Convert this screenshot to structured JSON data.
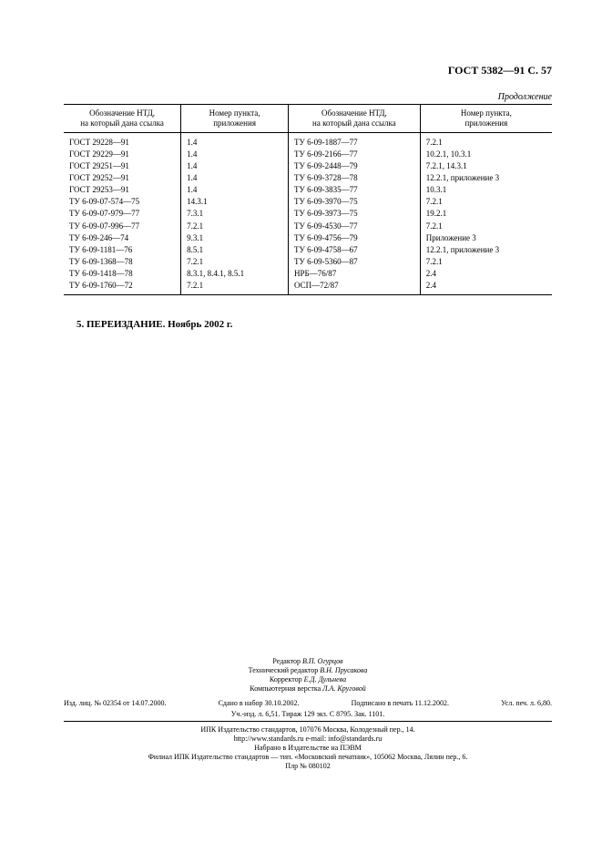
{
  "header": "ГОСТ 5382—91 С. 57",
  "continuation": "Продолжение",
  "table": {
    "col_widths_pct": [
      24,
      22,
      27,
      27
    ],
    "headers": [
      "Обозначение НТД,\nна который дана ссылка",
      "Номер пункта,\nприложения",
      "Обозначение НТД,\nна который дана ссылка",
      "Номер пункта,\nприложения"
    ],
    "rows": [
      [
        "ГОСТ 29228—91",
        "1.4",
        "ТУ 6-09-1887—77",
        "7.2.1"
      ],
      [
        "ГОСТ 29229—91",
        "1.4",
        "ТУ 6-09-2166—77",
        "10.2.1, 10.3.1"
      ],
      [
        "ГОСТ 29251—91",
        "1.4",
        "ТУ 6-09-2448—79",
        "7.2.1, 14.3.1"
      ],
      [
        "ГОСТ 29252—91",
        "1.4",
        "ТУ 6-09-3728—78",
        "12.2.1, приложение 3"
      ],
      [
        "ГОСТ 29253—91",
        "1.4",
        "ТУ 6-09-3835—77",
        "10.3.1"
      ],
      [
        "ТУ 6-09-07-574—75",
        "14.3.1",
        "ТУ 6-09-3970—75",
        "7.2.1"
      ],
      [
        "ТУ 6-09-07-979—77",
        "7.3.1",
        "ТУ 6-09-3973—75",
        "19.2.1"
      ],
      [
        "ТУ 6-09-07-996—77",
        "7.2.1",
        "ТУ 6-09-4530—77",
        "7.2.1"
      ],
      [
        "ТУ 6-09-246—74",
        "9.3.1",
        "ТУ 6-09-4756—79",
        "Приложение 3"
      ],
      [
        "ТУ 6-09-1181—76",
        "8.5.1",
        "ТУ 6-09-4758—67",
        "12.2.1, приложение 3"
      ],
      [
        "ТУ 6-09-1368—78",
        "7.2.1",
        "ТУ 6-09-5360—87",
        "7.2.1"
      ],
      [
        "ТУ 6-09-1418—78",
        "8.3.1, 8.4.1, 8.5.1",
        "НРБ—76/87",
        "2.4"
      ],
      [
        "ТУ 6-09-1760—72",
        "7.2.1",
        "ОСП—72/87",
        "2.4"
      ]
    ]
  },
  "section5_label": "5. ПЕРЕИЗДАНИЕ.",
  "section5_text": "Ноябрь 2002 г.",
  "imprint": {
    "editor_label": "Редактор",
    "editor": "В.П. Огурцов",
    "tech_editor_label": "Технический редактор",
    "tech_editor": "В.Н. Прусакова",
    "corrector_label": "Корректор",
    "corrector": "Е.Д. Дульнева",
    "layout_label": "Компьютерная верстка",
    "layout": "Л.А. Круговой",
    "license": "Изд. лиц. № 02354 от 14.07.2000.",
    "typeset": "Сдано в набор 30.10.2002.",
    "signed": "Подписано в печать 11.12.2002.",
    "usl": "Усл. печ. л. 6,80.",
    "line2": "Уч.-изд. л. 6,51.    Тираж 129 экз.  С 8795.    Зак. 1101.",
    "pub1": "ИПК Издательство стандартов, 107076 Москва, Колодезный пер., 14.",
    "pub2": "http://www.standards.ru        e-mail: info@standards.ru",
    "pub3": "Набрано в Издательстве на ПЭВМ",
    "pub4": "Филиал ИПК Издательство стандартов — тип. «Московский печатник», 105062 Москва, Лялин пер., 6.",
    "pub5": "Плр № 080102"
  }
}
